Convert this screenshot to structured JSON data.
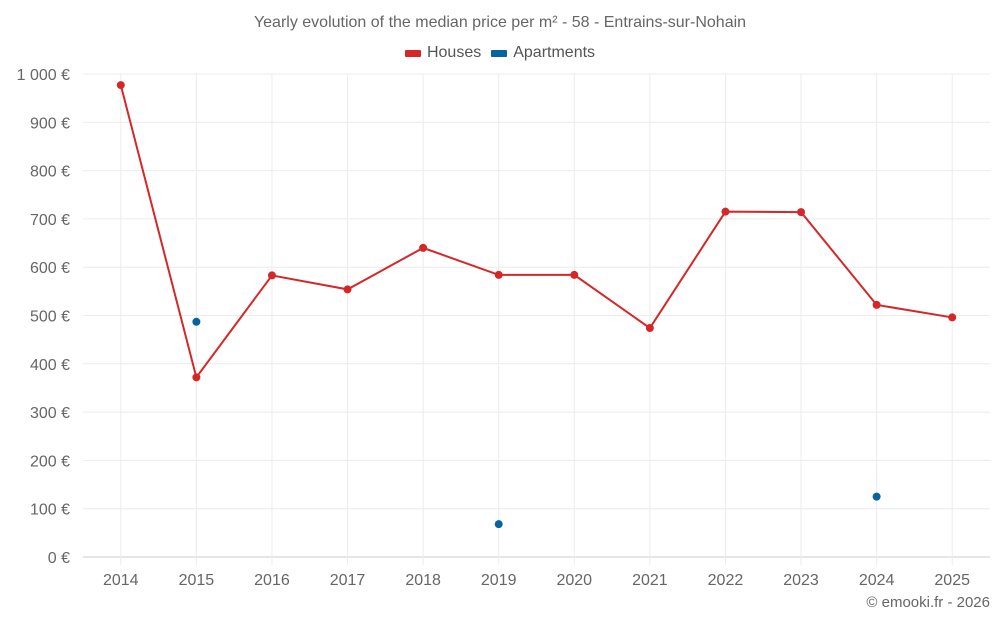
{
  "chart": {
    "title": "Yearly evolution of the median price per m² - 58 - Entrains-sur-Nohain",
    "credit": "© emooki.fr - 2026",
    "legend": [
      {
        "label": "Houses",
        "color": "#d62728"
      },
      {
        "label": "Apartments",
        "color": "#05649d"
      }
    ]
  },
  "chart_data": {
    "type": "line",
    "title": "Yearly evolution of the median price per m² - 58 - Entrains-sur-Nohain",
    "xlabel": "",
    "ylabel": "",
    "categories": [
      "2014",
      "2015",
      "2016",
      "2017",
      "2018",
      "2019",
      "2020",
      "2021",
      "2022",
      "2023",
      "2024",
      "2025"
    ],
    "y_ticks": [
      "0 €",
      "100 €",
      "200 €",
      "300 €",
      "400 €",
      "500 €",
      "600 €",
      "700 €",
      "800 €",
      "900 €",
      "1 000 €"
    ],
    "ylim": [
      0,
      1000
    ],
    "grid": true,
    "legend_position": "top",
    "series": [
      {
        "name": "Houses",
        "color": "#d62728",
        "values": [
          977,
          372,
          583,
          554,
          640,
          584,
          584,
          474,
          715,
          714,
          522,
          496
        ]
      },
      {
        "name": "Apartments",
        "color": "#05649d",
        "values": [
          null,
          487,
          null,
          null,
          null,
          68,
          null,
          null,
          null,
          null,
          125,
          null
        ]
      }
    ]
  }
}
